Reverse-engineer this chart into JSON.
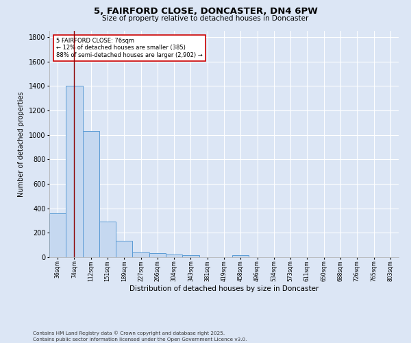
{
  "title_line1": "5, FAIRFORD CLOSE, DONCASTER, DN4 6PW",
  "title_line2": "Size of property relative to detached houses in Doncaster",
  "xlabel": "Distribution of detached houses by size in Doncaster",
  "ylabel": "Number of detached properties",
  "bar_categories": [
    "36sqm",
    "74sqm",
    "112sqm",
    "151sqm",
    "189sqm",
    "227sqm",
    "266sqm",
    "304sqm",
    "343sqm",
    "381sqm",
    "419sqm",
    "458sqm",
    "496sqm",
    "534sqm",
    "573sqm",
    "611sqm",
    "650sqm",
    "688sqm",
    "726sqm",
    "765sqm",
    "803sqm"
  ],
  "bar_values": [
    360,
    1400,
    1030,
    290,
    135,
    38,
    35,
    22,
    18,
    0,
    0,
    18,
    0,
    0,
    0,
    0,
    0,
    0,
    0,
    0,
    0
  ],
  "bar_color": "#c5d8f0",
  "bar_edge_color": "#5b9bd5",
  "background_color": "#dce6f5",
  "vline_x": 1.0,
  "vline_color": "#8b0000",
  "annotation_text": "5 FAIRFORD CLOSE: 76sqm\n← 12% of detached houses are smaller (385)\n88% of semi-detached houses are larger (2,902) →",
  "annotation_box_color": "#ffffff",
  "annotation_box_edge": "#cc0000",
  "ylim": [
    0,
    1850
  ],
  "yticks": [
    0,
    200,
    400,
    600,
    800,
    1000,
    1200,
    1400,
    1600,
    1800
  ],
  "footer_line1": "Contains HM Land Registry data © Crown copyright and database right 2025.",
  "footer_line2": "Contains public sector information licensed under the Open Government Licence v3.0."
}
